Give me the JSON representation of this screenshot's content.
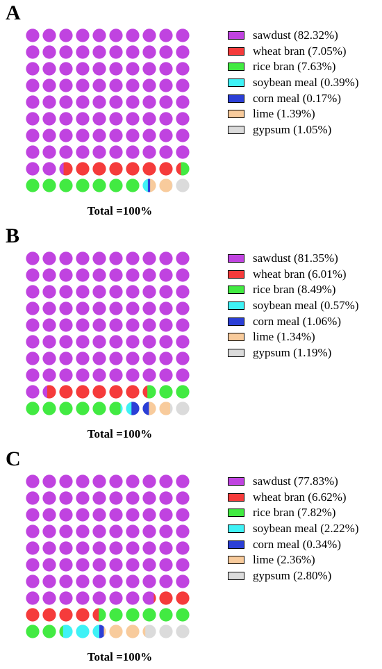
{
  "colors": {
    "sawdust": "#c043e0",
    "wheat_bran": "#f53b3b",
    "rice_bran": "#42ea42",
    "soybean_meal": "#3ff2f6",
    "corn_meal": "#2b3fd6",
    "lime": "#f8cb9c",
    "gypsum": "#dbdbdb"
  },
  "chart_data": [
    {
      "type": "waffle",
      "panel_label": "A",
      "total_label": "Total =100%",
      "grid": [
        10,
        10
      ],
      "categories": [
        "sawdust",
        "wheat bran",
        "rice bran",
        "soybean meal",
        "corn meal",
        "lime",
        "gypsum"
      ],
      "values": [
        82.32,
        7.05,
        7.63,
        0.39,
        0.17,
        1.39,
        1.05
      ],
      "legend": [
        "sawdust (82.32%)",
        "wheat bran (7.05%)",
        "rice bran (7.63%)",
        "soybean meal (0.39%)",
        "corn meal (0.17%)",
        "lime (1.39%)",
        "gypsum (1.05%)"
      ]
    },
    {
      "type": "waffle",
      "panel_label": "B",
      "total_label": "Total =100%",
      "grid": [
        10,
        10
      ],
      "categories": [
        "sawdust",
        "wheat bran",
        "rice bran",
        "soybean meal",
        "corn meal",
        "lime",
        "gypsum"
      ],
      "values": [
        81.35,
        6.01,
        8.49,
        0.57,
        1.06,
        1.34,
        1.19
      ],
      "legend": [
        "sawdust (81.35%)",
        "wheat bran (6.01%)",
        "rice bran (8.49%)",
        "soybean meal (0.57%)",
        "corn meal (1.06%)",
        "lime (1.34%)",
        "gypsum (1.19%)"
      ]
    },
    {
      "type": "waffle",
      "panel_label": "C",
      "total_label": "Total =100%",
      "grid": [
        10,
        10
      ],
      "categories": [
        "sawdust",
        "wheat bran",
        "rice bran",
        "soybean meal",
        "corn meal",
        "lime",
        "gypsum"
      ],
      "values": [
        77.83,
        6.62,
        7.82,
        2.22,
        0.34,
        2.36,
        2.8
      ],
      "legend": [
        "sawdust (77.83%)",
        "wheat bran (6.62%)",
        "rice bran (7.82%)",
        "soybean meal (2.22%)",
        "corn meal (0.34%)",
        "lime (2.36%)",
        "gypsum (2.80%)"
      ]
    }
  ]
}
